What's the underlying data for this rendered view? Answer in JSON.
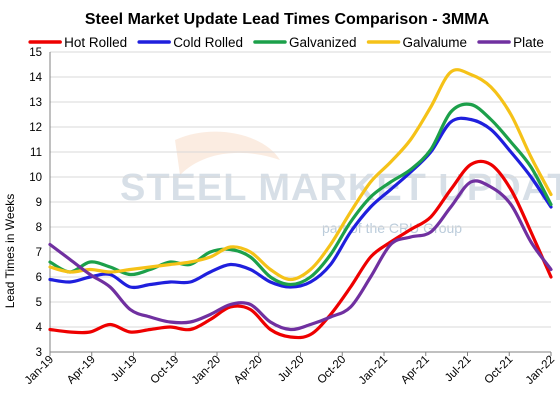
{
  "chart_data": {
    "type": "line",
    "title": "Steel Market Update Lead Times Comparison - 3MMA",
    "xlabel": "",
    "ylabel": "Lead Times in Weeks",
    "ylim": [
      3,
      15
    ],
    "yticks": [
      3,
      4,
      5,
      6,
      7,
      8,
      9,
      10,
      11,
      12,
      13,
      14,
      15
    ],
    "xticks": [
      "Jan-19",
      "Apr-19",
      "Jul-19",
      "Oct-19",
      "Jan-20",
      "Apr-20",
      "Jul-20",
      "Oct-20",
      "Jan-21",
      "Apr-21",
      "Jul-21",
      "Oct-21",
      "Jan-22"
    ],
    "grid": true,
    "legend_position": "top",
    "watermark": {
      "main": "STEEL MARKET UPDATE",
      "sub": "part of the CRU Group"
    },
    "series": [
      {
        "name": "Hot Rolled",
        "color": "#ee0000",
        "values": [
          3.9,
          3.8,
          3.8,
          4.1,
          3.8,
          3.9,
          4.0,
          3.9,
          4.3,
          4.8,
          4.7,
          3.9,
          3.6,
          3.7,
          4.5,
          5.6,
          6.8,
          7.4,
          7.9,
          8.4,
          9.5,
          10.5,
          10.5,
          9.5,
          7.8,
          6.0
        ]
      },
      {
        "name": "Cold Rolled",
        "color": "#1f1fdd",
        "values": [
          5.9,
          5.8,
          6.0,
          6.1,
          5.6,
          5.7,
          5.8,
          5.8,
          6.2,
          6.5,
          6.3,
          5.8,
          5.6,
          5.8,
          6.5,
          7.8,
          8.8,
          9.5,
          10.2,
          11.0,
          12.2,
          12.3,
          11.9,
          11.0,
          10.0,
          8.8
        ]
      },
      {
        "name": "Galvanized",
        "color": "#1ca04a",
        "values": [
          6.6,
          6.2,
          6.6,
          6.4,
          6.1,
          6.3,
          6.6,
          6.5,
          7.0,
          7.1,
          6.8,
          6.0,
          5.7,
          6.0,
          6.9,
          8.2,
          9.2,
          9.8,
          10.3,
          11.1,
          12.6,
          12.9,
          12.3,
          11.4,
          10.4,
          8.9
        ]
      },
      {
        "name": "Galvalume",
        "color": "#f5c218",
        "values": [
          6.4,
          6.2,
          6.3,
          6.2,
          6.3,
          6.4,
          6.5,
          6.6,
          6.8,
          7.2,
          7.0,
          6.3,
          5.9,
          6.3,
          7.3,
          8.6,
          9.8,
          10.6,
          11.5,
          12.8,
          14.2,
          14.1,
          13.6,
          12.5,
          10.8,
          9.3
        ]
      },
      {
        "name": "Plate",
        "color": "#7030a0",
        "values": [
          7.3,
          6.7,
          6.1,
          5.6,
          4.7,
          4.4,
          4.2,
          4.2,
          4.5,
          4.9,
          4.9,
          4.2,
          3.9,
          4.1,
          4.4,
          4.8,
          6.0,
          7.3,
          7.6,
          7.8,
          8.8,
          9.8,
          9.6,
          8.9,
          7.4,
          6.3
        ]
      }
    ]
  }
}
